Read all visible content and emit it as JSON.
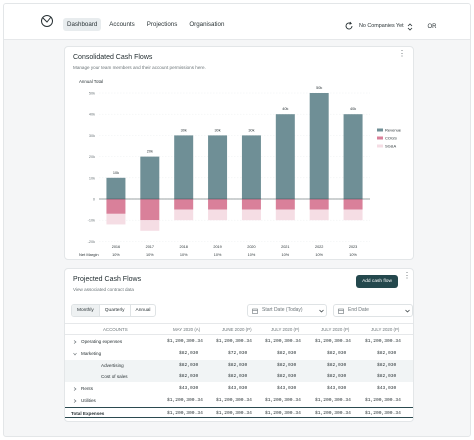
{
  "nav": {
    "items": [
      {
        "label": "Dashboard",
        "active": true
      },
      {
        "label": "Accounts",
        "active": false
      },
      {
        "label": "Projections",
        "active": false
      },
      {
        "label": "Organisation",
        "active": false
      }
    ],
    "company_selector": "No Companies Yet",
    "avatar_initials": "OR"
  },
  "cash_flows_card": {
    "title": "Consolidated Cash Flows",
    "subtitle": "Manage your team members and their account permissions here."
  },
  "chart_data": {
    "type": "bar",
    "stacked": true,
    "title": "Consolidated Cash Flows",
    "ylabel": "Annual Total",
    "row_label_bottom": "Net Margin",
    "categories": [
      "2016",
      "2017",
      "2018",
      "2019",
      "2020",
      "2021",
      "2022",
      "2023"
    ],
    "y_ticks": [
      "50k",
      "40k",
      "30k",
      "20k",
      "10k",
      "0",
      "-10k",
      "-20k"
    ],
    "ylim": [
      -20000,
      50000
    ],
    "bar_labels": [
      "10k",
      "20k",
      "30k",
      "30k",
      "30k",
      "40k",
      "50k",
      "40k"
    ],
    "net_margin": [
      "10%",
      "10%",
      "10%",
      "10%",
      "10%",
      "10%",
      "10%",
      "10%"
    ],
    "series": [
      {
        "name": "Revenue",
        "color": "#6f8f96",
        "values": [
          10000,
          20000,
          30000,
          30000,
          30000,
          40000,
          50000,
          40000
        ]
      },
      {
        "name": "COGS",
        "color": "#d9809a",
        "values": [
          -7000,
          -10000,
          -5000,
          -5000,
          -5000,
          -5000,
          -5000,
          -5000
        ]
      },
      {
        "name": "SG&A",
        "color": "#f5dde4",
        "values": [
          -5000,
          -5000,
          -5000,
          -5000,
          -5000,
          -5000,
          -5000,
          -5000
        ]
      }
    ],
    "legend_position": "right",
    "grid": true
  },
  "projected": {
    "title": "Projected Cash Flows",
    "subtitle": "View associated contract data",
    "add_button": "Add cash flow",
    "periods": [
      {
        "label": "Monthly",
        "active": true
      },
      {
        "label": "Quarterly",
        "active": false
      },
      {
        "label": "Annual",
        "active": false
      }
    ],
    "start_date_placeholder": "Start Date (Today)",
    "end_date_placeholder": "End Date",
    "columns": [
      "ACCOUNTS",
      "MAY 2020 (A)",
      "JUNE 2020 (P)",
      "JULY 2020 (P)",
      "JULY 2020 (P)",
      "JULY 2020 (P)"
    ],
    "rows": [
      {
        "label": "Operating expenses",
        "expander": "right",
        "indent": 0,
        "shaded": false,
        "values": [
          "$1,200,300.34",
          "$1,200,300.34",
          "$1,200,300.34",
          "$1,200,300.34",
          "$1,200,300.34"
        ]
      },
      {
        "label": "Marketing",
        "expander": "down",
        "indent": 0,
        "shaded": false,
        "values": [
          "$82,030",
          "$72,030",
          "$82,030",
          "$82,030",
          "$82,030"
        ]
      },
      {
        "label": "Advertising",
        "expander": "",
        "indent": 1,
        "shaded": true,
        "values": [
          "$82,030",
          "$82,030",
          "$82,030",
          "$82,030",
          "$82,030"
        ]
      },
      {
        "label": "Cost of sales",
        "expander": "",
        "indent": 1,
        "shaded": true,
        "values": [
          "$82,030",
          "$82,030",
          "$82,030",
          "$82,030",
          "$82,030"
        ]
      },
      {
        "label": "Rents",
        "expander": "right",
        "indent": 0,
        "shaded": false,
        "values": [
          "$43,030",
          "$43,030",
          "$43,030",
          "$43,030",
          "$43,030"
        ]
      },
      {
        "label": "Utilities",
        "expander": "right",
        "indent": 0,
        "shaded": false,
        "values": [
          "$1,200,300.34",
          "$1,200,300.34",
          "$1,200,300.34",
          "$1,200,300.34",
          "$1,200,300.34"
        ]
      }
    ],
    "total": {
      "label": "Total Expenses",
      "values": [
        "$1,200,300.34",
        "$1,200,300.34",
        "$1,200,300.34",
        "$1,200,300.34",
        "$1,200,300.34"
      ]
    }
  }
}
